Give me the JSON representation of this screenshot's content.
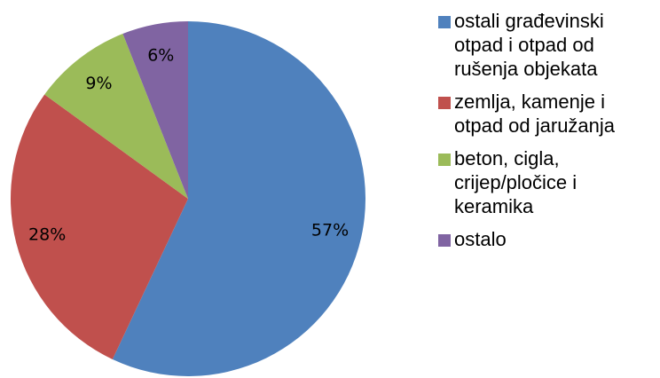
{
  "chart_data": {
    "type": "pie",
    "categories": [
      "ostali građevinski otpad i otpad od rušenja objekata",
      "zemlja, kamenje i otpad od jaružanja",
      "beton, cigla, crijep/pločice i keramika",
      "ostalo"
    ],
    "values": [
      57,
      28,
      9,
      6
    ],
    "value_labels": [
      "57%",
      "28%",
      "9%",
      "6%"
    ],
    "colors": [
      "#4f81bd",
      "#c0504d",
      "#9bbb59",
      "#8064a2"
    ],
    "legend": "right"
  }
}
